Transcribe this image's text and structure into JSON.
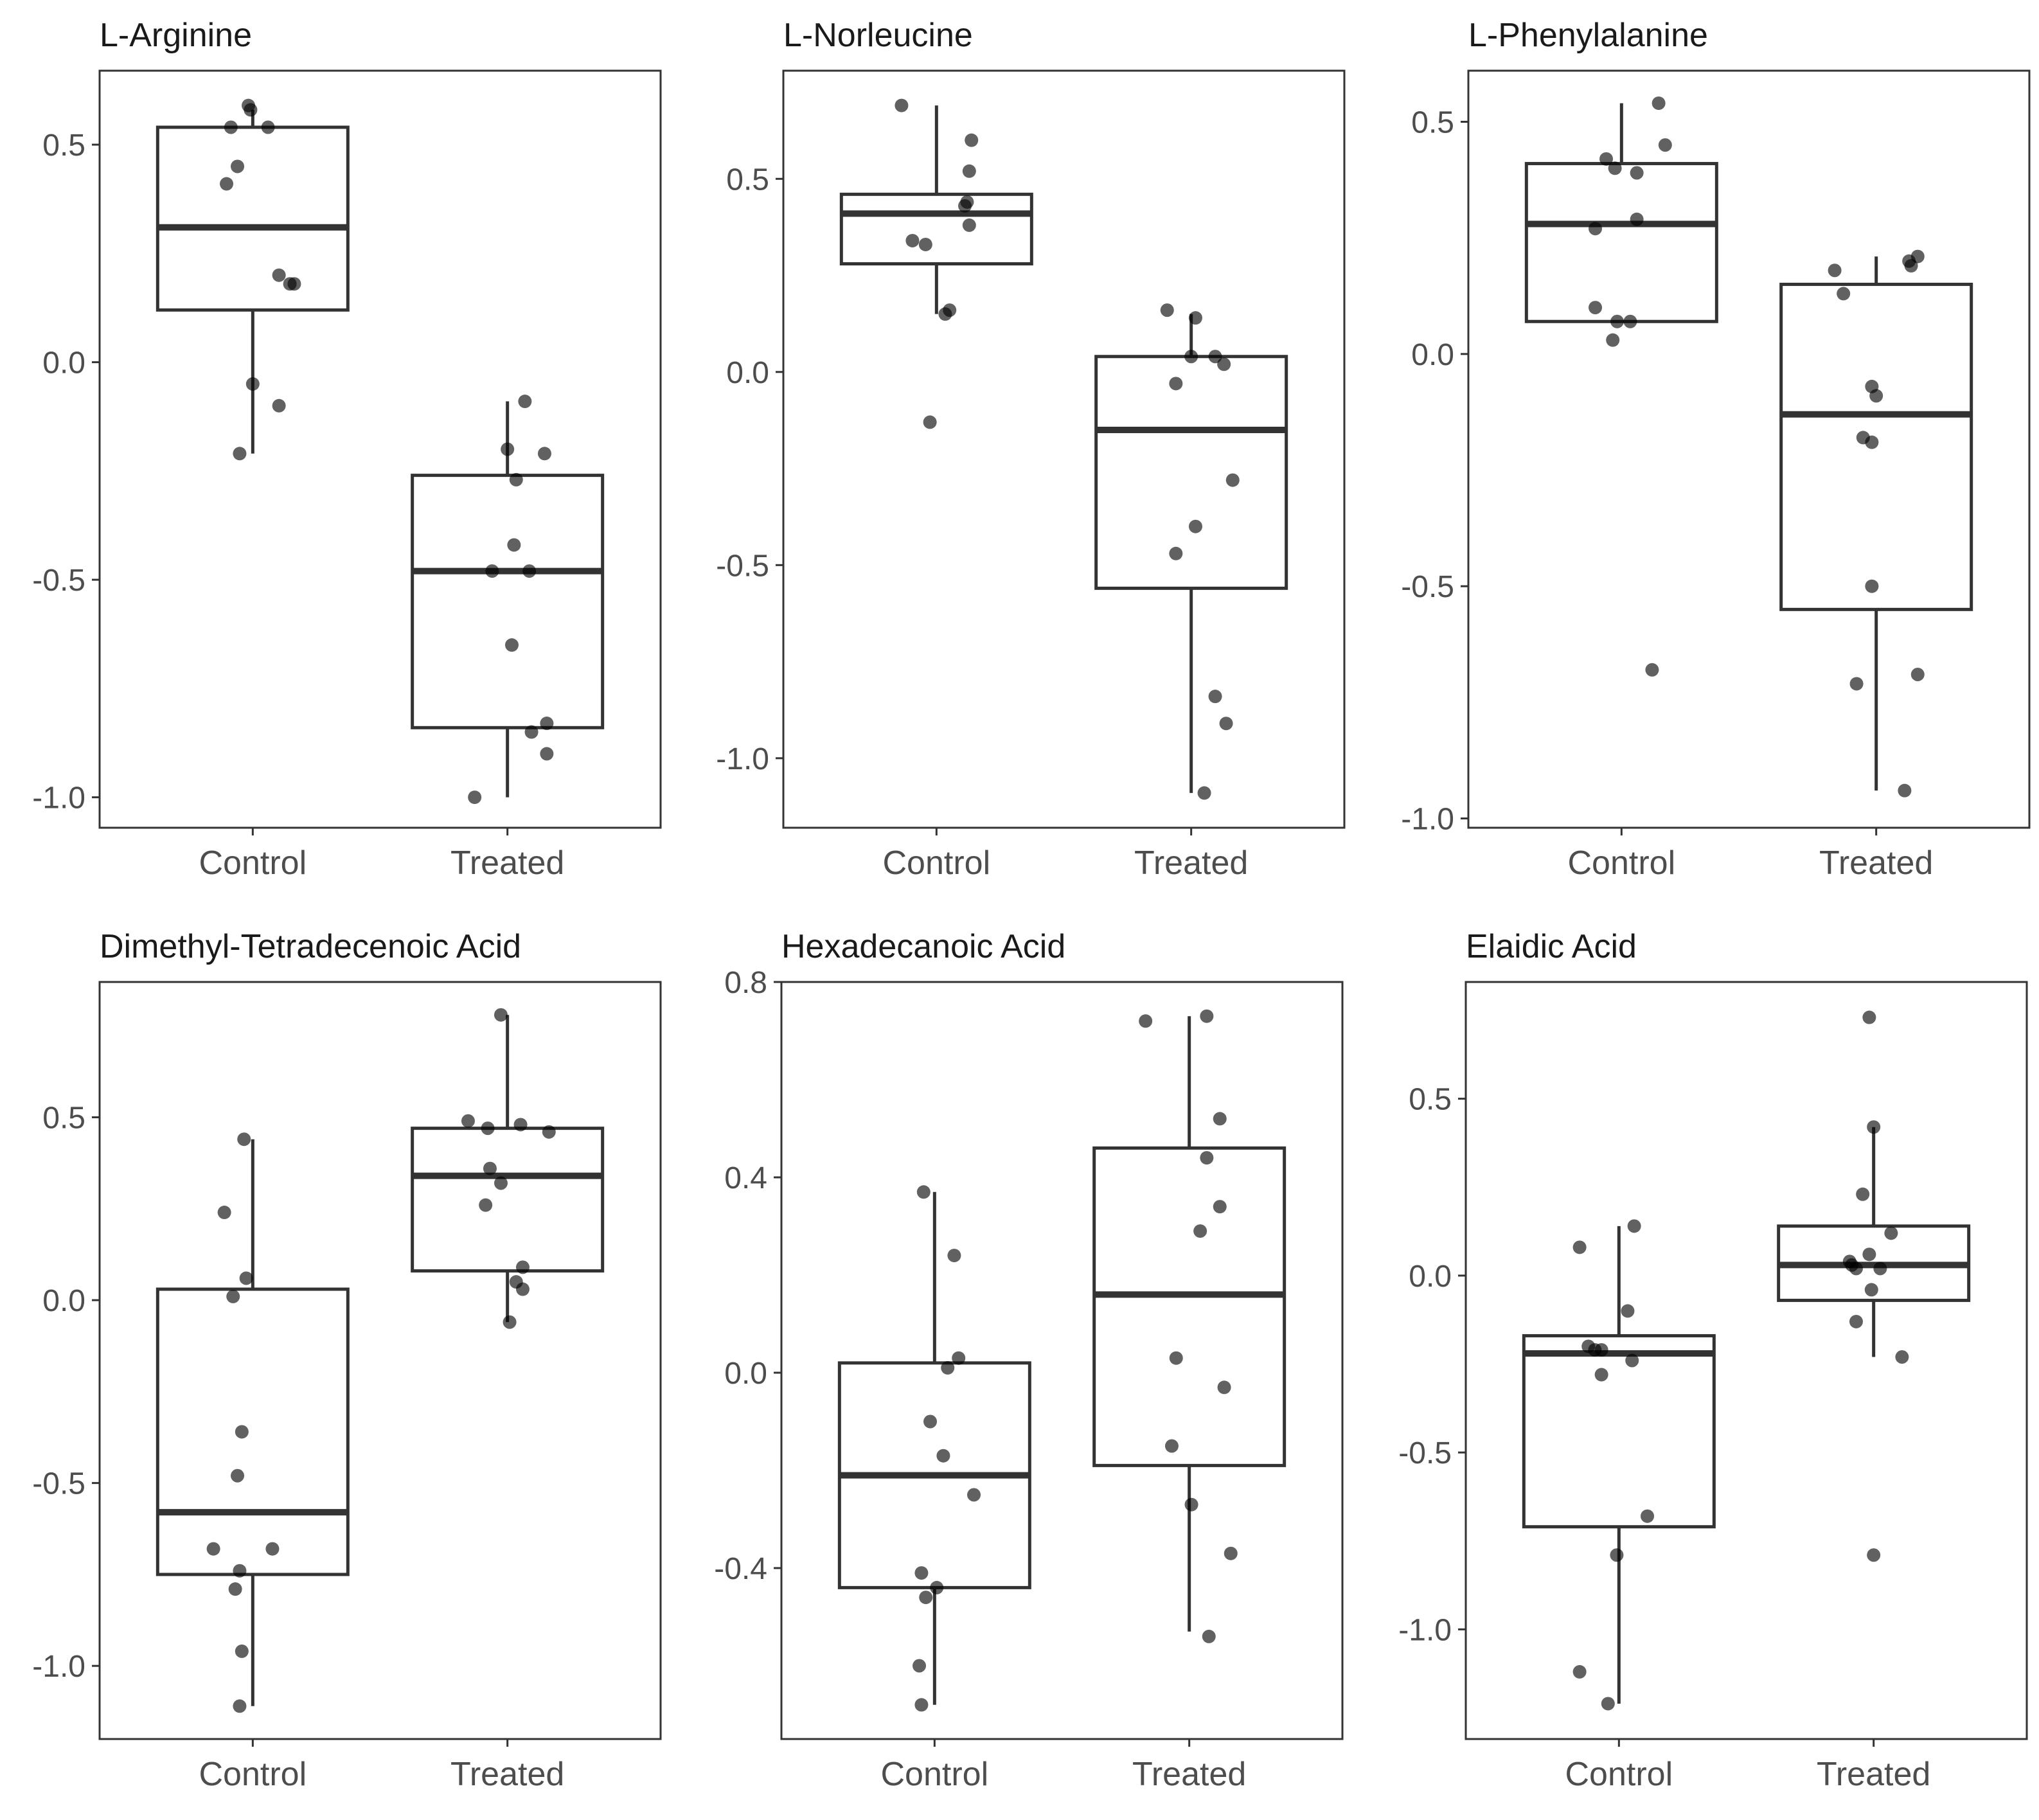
{
  "chart_data": [
    {
      "type": "box",
      "title": "L-Arginine",
      "categories": [
        "Control",
        "Treated"
      ],
      "ylim": [
        -1.07,
        0.67
      ],
      "yticks": [
        0.5,
        0.0,
        -0.5,
        -1.0
      ],
      "ytick_labels": [
        "0.5",
        "0.0",
        "-0.5",
        "-1.0"
      ],
      "boxes": [
        {
          "q1": 0.12,
          "median": 0.31,
          "q3": 0.54,
          "whisker_low": -0.21,
          "whisker_high": 0.58
        },
        {
          "q1": -0.84,
          "median": -0.48,
          "q3": -0.26,
          "whisker_low": -1.0,
          "whisker_high": -0.09
        }
      ],
      "points": [
        [
          {
            "x": -0.1,
            "y": 0.54
          },
          {
            "x": -0.02,
            "y": 0.59
          },
          {
            "x": -0.01,
            "y": 0.58
          },
          {
            "x": 0.07,
            "y": 0.54
          },
          {
            "x": -0.07,
            "y": 0.45
          },
          {
            "x": -0.12,
            "y": 0.41
          },
          {
            "x": 0.12,
            "y": 0.2
          },
          {
            "x": 0.17,
            "y": 0.18
          },
          {
            "x": 0.19,
            "y": 0.18
          },
          {
            "x": 0.0,
            "y": -0.05
          },
          {
            "x": 0.12,
            "y": -0.1
          },
          {
            "x": -0.06,
            "y": -0.21
          }
        ],
        [
          {
            "x": 0.08,
            "y": -0.09
          },
          {
            "x": 0.0,
            "y": -0.2
          },
          {
            "x": 0.17,
            "y": -0.21
          },
          {
            "x": 0.04,
            "y": -0.27
          },
          {
            "x": 0.03,
            "y": -0.42
          },
          {
            "x": -0.07,
            "y": -0.48
          },
          {
            "x": 0.1,
            "y": -0.48
          },
          {
            "x": 0.02,
            "y": -0.65
          },
          {
            "x": 0.18,
            "y": -0.83
          },
          {
            "x": 0.11,
            "y": -0.85
          },
          {
            "x": 0.18,
            "y": -0.9
          },
          {
            "x": -0.15,
            "y": -1.0
          }
        ]
      ]
    },
    {
      "type": "box",
      "title": "L-Norleucine",
      "categories": [
        "Control",
        "Treated"
      ],
      "ylim": [
        -1.18,
        0.78
      ],
      "yticks": [
        0.5,
        0.0,
        -0.5,
        -1.0
      ],
      "ytick_labels": [
        "0.5",
        "0.0",
        "-0.5",
        "-1.0"
      ],
      "boxes": [
        {
          "q1": 0.28,
          "median": 0.41,
          "q3": 0.46,
          "whisker_low": 0.15,
          "whisker_high": 0.69
        },
        {
          "q1": -0.56,
          "median": -0.15,
          "q3": 0.04,
          "whisker_low": -1.09,
          "whisker_high": 0.15
        }
      ],
      "points": [
        [
          {
            "x": -0.16,
            "y": 0.69
          },
          {
            "x": 0.16,
            "y": 0.6
          },
          {
            "x": 0.15,
            "y": 0.52
          },
          {
            "x": 0.14,
            "y": 0.44
          },
          {
            "x": 0.13,
            "y": 0.43
          },
          {
            "x": 0.15,
            "y": 0.38
          },
          {
            "x": -0.11,
            "y": 0.34
          },
          {
            "x": -0.05,
            "y": 0.33
          },
          {
            "x": 0.06,
            "y": 0.16
          },
          {
            "x": 0.04,
            "y": 0.15
          },
          {
            "x": -0.03,
            "y": -0.13
          }
        ],
        [
          {
            "x": -0.11,
            "y": 0.16
          },
          {
            "x": 0.02,
            "y": 0.14
          },
          {
            "x": 0.0,
            "y": 0.04
          },
          {
            "x": 0.11,
            "y": 0.04
          },
          {
            "x": 0.15,
            "y": 0.02
          },
          {
            "x": -0.07,
            "y": -0.03
          },
          {
            "x": 0.19,
            "y": -0.28
          },
          {
            "x": 0.02,
            "y": -0.4
          },
          {
            "x": -0.07,
            "y": -0.47
          },
          {
            "x": 0.11,
            "y": -0.84
          },
          {
            "x": 0.16,
            "y": -0.91
          },
          {
            "x": 0.06,
            "y": -1.09
          }
        ]
      ]
    },
    {
      "type": "box",
      "title": "L-Phenylalanine",
      "categories": [
        "Control",
        "Treated"
      ],
      "ylim": [
        -1.02,
        0.61
      ],
      "yticks": [
        0.5,
        0.0,
        -0.5,
        -1.0
      ],
      "ytick_labels": [
        "0.5",
        "0.0",
        "-0.5",
        "-1.0"
      ],
      "boxes": [
        {
          "q1": 0.07,
          "median": 0.28,
          "q3": 0.41,
          "whisker_low": 0.07,
          "whisker_high": 0.54
        },
        {
          "q1": -0.55,
          "median": -0.13,
          "q3": 0.15,
          "whisker_low": -0.94,
          "whisker_high": 0.21
        }
      ],
      "points": [
        [
          {
            "x": 0.17,
            "y": 0.54
          },
          {
            "x": 0.2,
            "y": 0.45
          },
          {
            "x": -0.07,
            "y": 0.42
          },
          {
            "x": -0.03,
            "y": 0.4
          },
          {
            "x": 0.07,
            "y": 0.39
          },
          {
            "x": 0.07,
            "y": 0.29
          },
          {
            "x": -0.12,
            "y": 0.27
          },
          {
            "x": -0.12,
            "y": 0.1
          },
          {
            "x": -0.02,
            "y": 0.07
          },
          {
            "x": 0.04,
            "y": 0.07
          },
          {
            "x": -0.04,
            "y": 0.03
          },
          {
            "x": 0.14,
            "y": -0.68
          }
        ],
        [
          {
            "x": 0.19,
            "y": 0.21
          },
          {
            "x": 0.15,
            "y": 0.2
          },
          {
            "x": 0.16,
            "y": 0.19
          },
          {
            "x": -0.15,
            "y": 0.13
          },
          {
            "x": -0.19,
            "y": 0.18
          },
          {
            "x": -0.02,
            "y": -0.07
          },
          {
            "x": 0.0,
            "y": -0.09
          },
          {
            "x": -0.06,
            "y": -0.18
          },
          {
            "x": -0.02,
            "y": -0.19
          },
          {
            "x": -0.02,
            "y": -0.5
          },
          {
            "x": -0.09,
            "y": -0.71
          },
          {
            "x": 0.19,
            "y": -0.69
          },
          {
            "x": 0.13,
            "y": -0.94
          }
        ]
      ]
    },
    {
      "type": "box",
      "title": "Dimethyl-Tetradecenoic Acid",
      "categories": [
        "Control",
        "Treated"
      ],
      "ylim": [
        -1.2,
        0.87
      ],
      "yticks": [
        0.5,
        0.0,
        -0.5,
        -1.0
      ],
      "ytick_labels": [
        "0.5",
        "0.0",
        "-0.5",
        "-1.0"
      ],
      "boxes": [
        {
          "q1": -0.75,
          "median": -0.58,
          "q3": 0.03,
          "whisker_low": -1.11,
          "whisker_high": 0.44
        },
        {
          "q1": 0.08,
          "median": 0.34,
          "q3": 0.47,
          "whisker_low": -0.06,
          "whisker_high": 0.78
        }
      ],
      "points": [
        [
          {
            "x": -0.04,
            "y": 0.44
          },
          {
            "x": -0.13,
            "y": 0.24
          },
          {
            "x": -0.03,
            "y": 0.06
          },
          {
            "x": -0.09,
            "y": 0.01
          },
          {
            "x": -0.05,
            "y": -0.36
          },
          {
            "x": -0.07,
            "y": -0.48
          },
          {
            "x": -0.18,
            "y": -0.68
          },
          {
            "x": 0.09,
            "y": -0.68
          },
          {
            "x": -0.06,
            "y": -0.74
          },
          {
            "x": -0.08,
            "y": -0.79
          },
          {
            "x": -0.05,
            "y": -0.96
          },
          {
            "x": -0.06,
            "y": -1.11
          }
        ],
        [
          {
            "x": -0.03,
            "y": 0.78
          },
          {
            "x": -0.18,
            "y": 0.49
          },
          {
            "x": -0.09,
            "y": 0.47
          },
          {
            "x": 0.06,
            "y": 0.48
          },
          {
            "x": 0.19,
            "y": 0.46
          },
          {
            "x": -0.08,
            "y": 0.36
          },
          {
            "x": -0.03,
            "y": 0.32
          },
          {
            "x": -0.1,
            "y": 0.26
          },
          {
            "x": 0.07,
            "y": 0.09
          },
          {
            "x": 0.04,
            "y": 0.05
          },
          {
            "x": 0.07,
            "y": 0.03
          },
          {
            "x": 0.01,
            "y": -0.06
          }
        ]
      ]
    },
    {
      "type": "box",
      "title": "Hexadecanoic Acid",
      "categories": [
        "Control",
        "Treated"
      ],
      "ylim": [
        -0.75,
        0.8
      ],
      "yticks": [
        0.8,
        0.4,
        0.0,
        -0.4
      ],
      "ytick_labels": [
        "0.8",
        "0.4",
        "0.0",
        "-0.4"
      ],
      "boxes": [
        {
          "q1": -0.44,
          "median": -0.21,
          "q3": 0.02,
          "whisker_low": -0.68,
          "whisker_high": 0.37
        },
        {
          "q1": -0.19,
          "median": 0.16,
          "q3": 0.46,
          "whisker_low": -0.53,
          "whisker_high": 0.73
        }
      ],
      "points": [
        [
          {
            "x": -0.05,
            "y": 0.37
          },
          {
            "x": 0.09,
            "y": 0.24
          },
          {
            "x": 0.11,
            "y": 0.03
          },
          {
            "x": 0.06,
            "y": 0.01
          },
          {
            "x": -0.02,
            "y": -0.1
          },
          {
            "x": 0.04,
            "y": -0.17
          },
          {
            "x": 0.18,
            "y": -0.25
          },
          {
            "x": -0.06,
            "y": -0.41
          },
          {
            "x": 0.01,
            "y": -0.44
          },
          {
            "x": -0.04,
            "y": -0.46
          },
          {
            "x": -0.07,
            "y": -0.6
          },
          {
            "x": -0.06,
            "y": -0.68
          }
        ],
        [
          {
            "x": -0.2,
            "y": 0.72
          },
          {
            "x": 0.08,
            "y": 0.73
          },
          {
            "x": 0.14,
            "y": 0.52
          },
          {
            "x": 0.08,
            "y": 0.44
          },
          {
            "x": 0.14,
            "y": 0.34
          },
          {
            "x": 0.05,
            "y": 0.29
          },
          {
            "x": -0.06,
            "y": 0.03
          },
          {
            "x": 0.16,
            "y": -0.03
          },
          {
            "x": -0.08,
            "y": -0.15
          },
          {
            "x": 0.01,
            "y": -0.27
          },
          {
            "x": 0.19,
            "y": -0.37
          },
          {
            "x": 0.09,
            "y": -0.54
          }
        ]
      ]
    },
    {
      "type": "box",
      "title": "Elaidic Acid",
      "categories": [
        "Control",
        "Treated"
      ],
      "ylim": [
        -1.31,
        0.83
      ],
      "yticks": [
        0.5,
        0.0,
        -0.5,
        -1.0
      ],
      "ytick_labels": [
        "0.5",
        "0.0",
        "-0.5",
        "-1.0"
      ],
      "boxes": [
        {
          "q1": -0.71,
          "median": -0.22,
          "q3": -0.17,
          "whisker_low": -1.21,
          "whisker_high": 0.14
        },
        {
          "q1": -0.07,
          "median": 0.03,
          "q3": 0.14,
          "whisker_low": -0.23,
          "whisker_high": 0.42
        }
      ],
      "points": [
        [
          {
            "x": 0.07,
            "y": 0.14
          },
          {
            "x": -0.18,
            "y": 0.08
          },
          {
            "x": 0.04,
            "y": -0.1
          },
          {
            "x": -0.14,
            "y": -0.2
          },
          {
            "x": -0.11,
            "y": -0.21
          },
          {
            "x": -0.08,
            "y": -0.21
          },
          {
            "x": 0.06,
            "y": -0.24
          },
          {
            "x": -0.08,
            "y": -0.28
          },
          {
            "x": 0.13,
            "y": -0.68
          },
          {
            "x": -0.01,
            "y": -0.79
          },
          {
            "x": -0.18,
            "y": -1.12
          },
          {
            "x": -0.05,
            "y": -1.21
          }
        ],
        [
          {
            "x": -0.02,
            "y": 0.73
          },
          {
            "x": 0.0,
            "y": 0.42
          },
          {
            "x": -0.05,
            "y": 0.23
          },
          {
            "x": 0.08,
            "y": 0.12
          },
          {
            "x": -0.02,
            "y": 0.06
          },
          {
            "x": -0.11,
            "y": 0.04
          },
          {
            "x": -0.1,
            "y": 0.03
          },
          {
            "x": -0.08,
            "y": 0.02
          },
          {
            "x": 0.03,
            "y": 0.02
          },
          {
            "x": -0.01,
            "y": -0.04
          },
          {
            "x": -0.08,
            "y": -0.13
          },
          {
            "x": 0.13,
            "y": -0.23
          },
          {
            "x": 0.0,
            "y": -0.79
          }
        ]
      ]
    }
  ]
}
